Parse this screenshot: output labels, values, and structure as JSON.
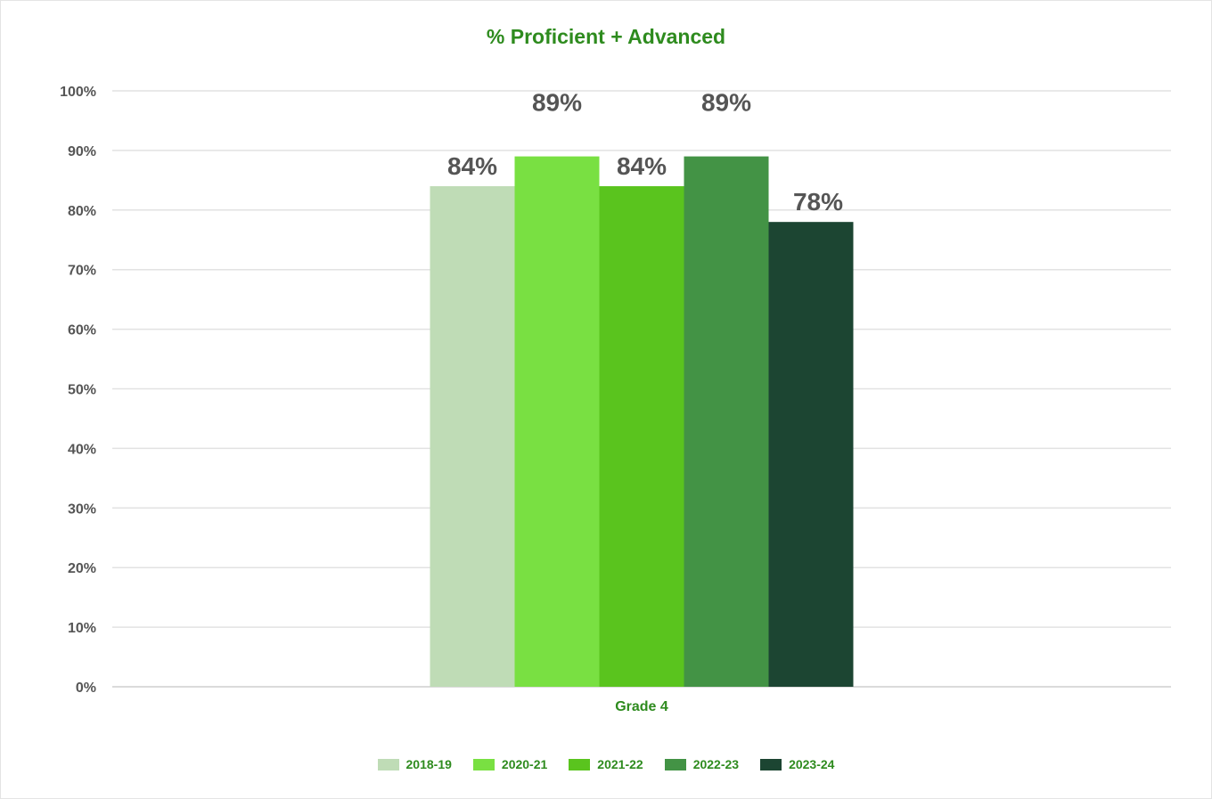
{
  "chart_data": {
    "type": "bar",
    "title": "% Proficient + Advanced",
    "xlabel": "",
    "ylabel": "",
    "categories": [
      "Grade 4"
    ],
    "series": [
      {
        "name": "2018-19",
        "values": [
          84
        ],
        "label": "84%",
        "color": "#bfdcb6"
      },
      {
        "name": "2020-21",
        "values": [
          89
        ],
        "label": "89%",
        "color": "#79e042"
      },
      {
        "name": "2021-22",
        "values": [
          84
        ],
        "label": "84%",
        "color": "#5ac41e"
      },
      {
        "name": "2022-23",
        "values": [
          89
        ],
        "label": "89%",
        "color": "#439345"
      },
      {
        "name": "2023-24",
        "values": [
          78
        ],
        "label": "78%",
        "color": "#1c4532"
      }
    ],
    "ylim": [
      0,
      100
    ],
    "yticks": [
      "0%",
      "10%",
      "20%",
      "30%",
      "40%",
      "50%",
      "60%",
      "70%",
      "80%",
      "90%",
      "100%"
    ],
    "grid": true,
    "legend_position": "bottom"
  }
}
